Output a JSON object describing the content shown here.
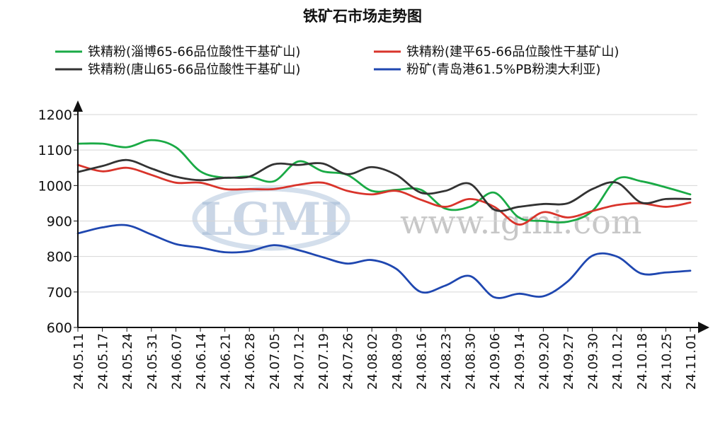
{
  "chart_data": {
    "type": "line",
    "title": "铁矿石市场走势图",
    "watermark": {
      "logo": "LGMI",
      "url": "www.lgmi.com"
    },
    "xlabel": "",
    "ylabel": "",
    "ylim": [
      600,
      1200
    ],
    "yticks": [
      600,
      700,
      800,
      900,
      1000,
      1100,
      1200
    ],
    "grid": true,
    "legend_position": "top",
    "categories": [
      "24.05.11",
      "24.05.17",
      "24.05.24",
      "24.05.31",
      "24.06.07",
      "24.06.14",
      "24.06.21",
      "24.06.28",
      "24.07.05",
      "24.07.12",
      "24.07.19",
      "24.07.26",
      "24.08.02",
      "24.08.09",
      "24.08.16",
      "24.08.23",
      "24.08.30",
      "24.09.06",
      "24.09.14",
      "24.09.20",
      "24.09.27",
      "24.09.30",
      "24.10.12",
      "24.10.18",
      "24.10.25",
      "24.11.01"
    ],
    "series": [
      {
        "name": "铁精粉(淄博65-66品位酸性干基矿山)",
        "color": "#1aaa45",
        "values": [
          1118,
          1118,
          1108,
          1128,
          1108,
          1040,
          1022,
          1025,
          1012,
          1068,
          1040,
          1030,
          985,
          988,
          988,
          935,
          940,
          980,
          910,
          900,
          898,
          928,
          1018,
          1012,
          995,
          975
        ]
      },
      {
        "name": "铁精粉(建平65-66品位酸性干基矿山)",
        "color": "#d9342b",
        "values": [
          1058,
          1040,
          1050,
          1030,
          1008,
          1008,
          990,
          990,
          990,
          1002,
          1008,
          985,
          975,
          985,
          960,
          940,
          962,
          940,
          890,
          925,
          910,
          928,
          945,
          950,
          940,
          952
        ]
      },
      {
        "name": "铁精粉(唐山65-66品位酸性干基矿山)",
        "color": "#333333",
        "values": [
          1038,
          1055,
          1072,
          1048,
          1025,
          1015,
          1022,
          1025,
          1060,
          1058,
          1062,
          1032,
          1052,
          1030,
          980,
          985,
          1005,
          932,
          940,
          948,
          950,
          990,
          1008,
          952,
          962,
          962
        ]
      },
      {
        "name": "粉矿(青岛港61.5%PB粉澳大利亚)",
        "color": "#1f47b0",
        "values": [
          865,
          882,
          888,
          862,
          835,
          825,
          812,
          815,
          832,
          818,
          798,
          780,
          790,
          765,
          700,
          718,
          745,
          685,
          695,
          688,
          730,
          802,
          800,
          752,
          755,
          760
        ]
      }
    ]
  }
}
